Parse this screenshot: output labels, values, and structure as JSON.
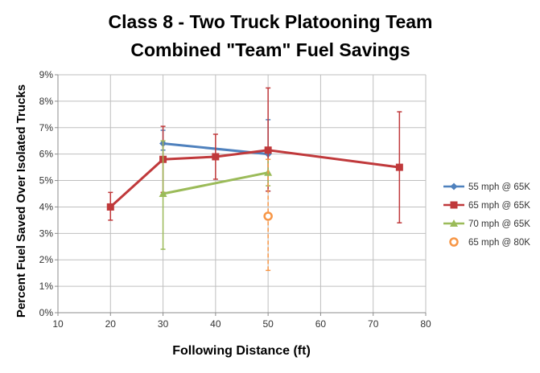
{
  "chart_data": {
    "type": "line",
    "title_lines": [
      "Class 8 - Two Truck Platooning Team",
      "Combined \"Team\" Fuel Savings"
    ],
    "xlabel": "Following Distance (ft)",
    "ylabel": "Percent Fuel Saved Over Isolated Trucks",
    "xlim": [
      10,
      80
    ],
    "ylim": [
      0,
      9
    ],
    "xticks": [
      10,
      20,
      30,
      40,
      50,
      60,
      70,
      80
    ],
    "xtick_labels": [
      "10",
      "20",
      "30",
      "40",
      "50",
      "60",
      "70",
      "80"
    ],
    "yticks": [
      0,
      1,
      2,
      3,
      4,
      5,
      6,
      7,
      8,
      9
    ],
    "ytick_labels": [
      "0%",
      "1%",
      "2%",
      "3%",
      "4%",
      "5%",
      "6%",
      "7%",
      "8%",
      "9%"
    ],
    "grid": true,
    "legend_position": "right",
    "series": [
      {
        "name": "55 mph @ 65K",
        "color": "#4f81bd",
        "marker": "diamond",
        "line": "solid",
        "points": [
          {
            "x": 30,
            "y": 6.4,
            "err_low": 6.15,
            "err_high": 6.9
          },
          {
            "x": 50,
            "y": 6.0,
            "err_low": 4.6,
            "err_high": 7.3
          }
        ]
      },
      {
        "name": "65 mph @ 65K",
        "color": "#c0393b",
        "marker": "square",
        "line": "solid",
        "points": [
          {
            "x": 20,
            "y": 4.0,
            "err_low": 3.5,
            "err_high": 4.55
          },
          {
            "x": 30,
            "y": 5.8,
            "err_low": 4.55,
            "err_high": 7.05
          },
          {
            "x": 40,
            "y": 5.9,
            "err_low": 5.05,
            "err_high": 6.75
          },
          {
            "x": 50,
            "y": 6.15,
            "err_low": 4.6,
            "err_high": 8.5
          },
          {
            "x": 75,
            "y": 5.5,
            "err_low": 3.4,
            "err_high": 7.6
          }
        ]
      },
      {
        "name": "70 mph @ 65K",
        "color": "#9bbb59",
        "marker": "triangle",
        "line": "solid",
        "points": [
          {
            "x": 30,
            "y": 4.5,
            "err_low": 2.4,
            "err_high": 6.5
          },
          {
            "x": 50,
            "y": 5.3,
            "err_low": 4.8,
            "err_high": 5.8
          }
        ]
      },
      {
        "name": "65 mph @ 80K",
        "color": "#f79646",
        "marker": "circle-open",
        "line": "dashed",
        "points": [
          {
            "x": 50,
            "y": 3.65,
            "err_low": 1.6,
            "err_high": 5.8
          }
        ]
      }
    ]
  }
}
